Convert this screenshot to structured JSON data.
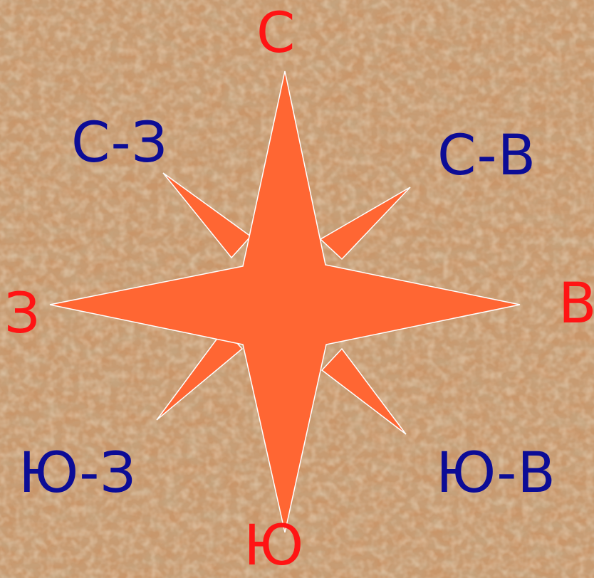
{
  "compass": {
    "colors": {
      "star_fill": "#ff6633",
      "star_stroke": "#ffffff",
      "primary_label": "#ff1414",
      "secondary_label": "#0c0c96",
      "background": "#c9966a"
    },
    "labels": {
      "north": "С",
      "south": "Ю",
      "east": "В",
      "west": "З",
      "northeast": "С-В",
      "northwest": "С-З",
      "southeast": "Ю-В",
      "southwest": "Ю-З"
    }
  }
}
